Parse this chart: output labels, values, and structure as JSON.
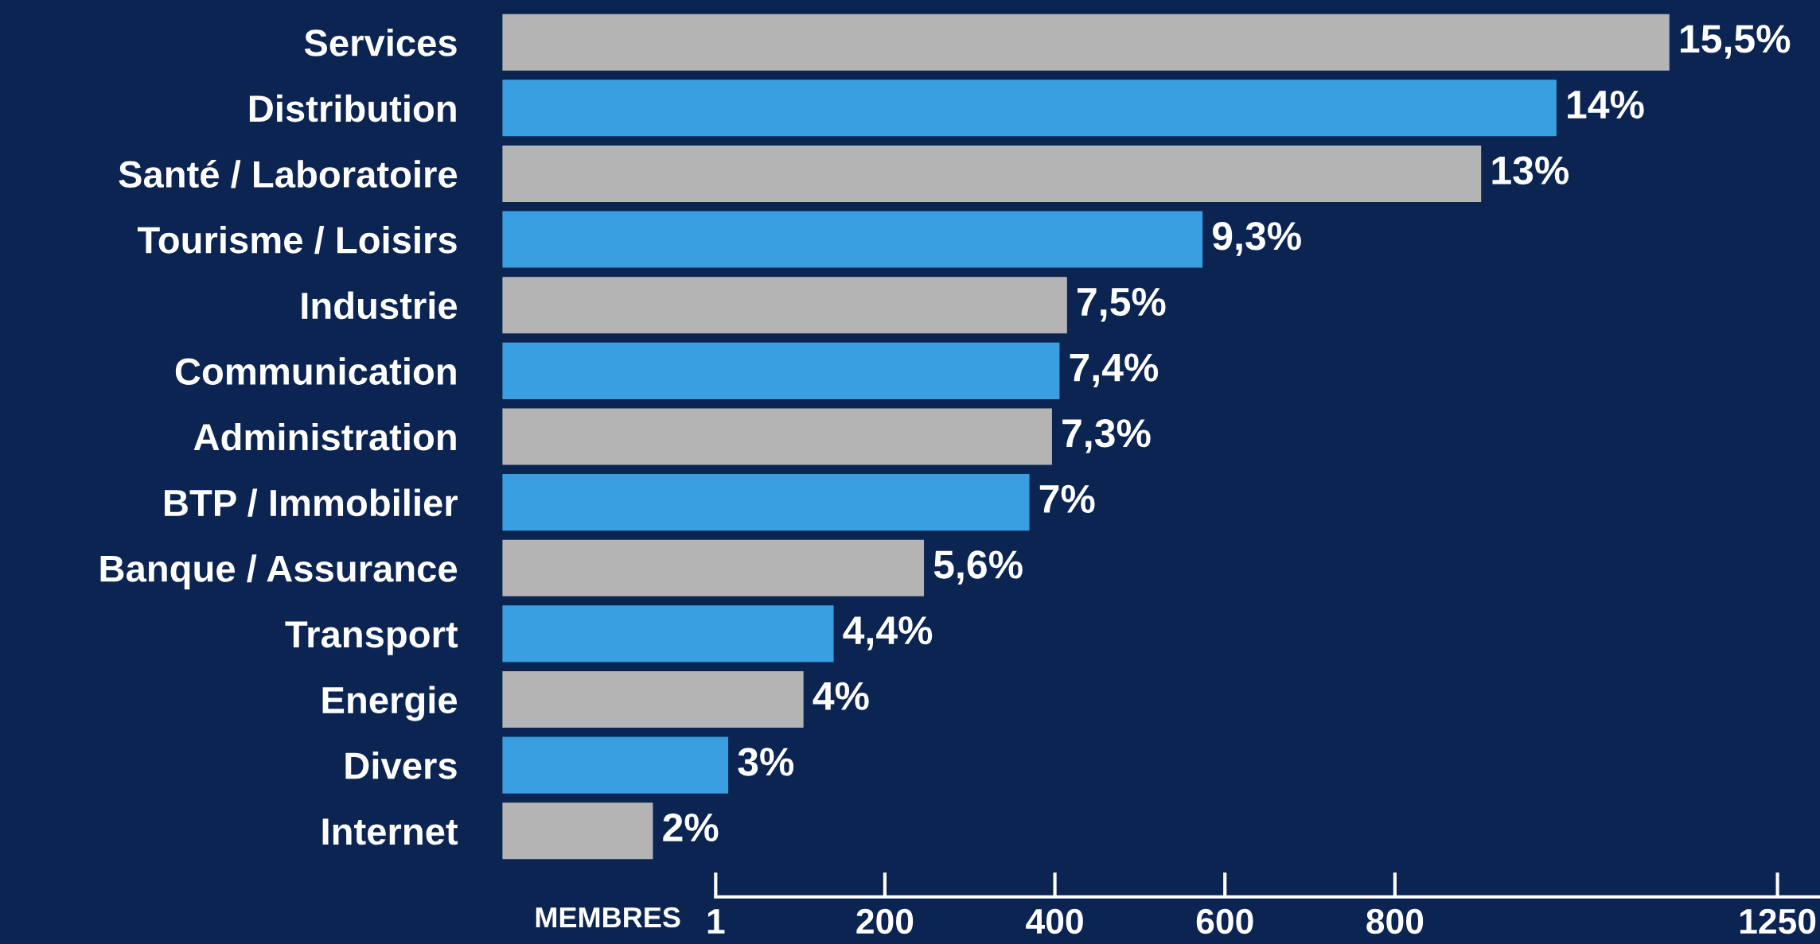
{
  "chart_data": {
    "type": "bar",
    "orientation": "horizontal",
    "categories": [
      "Services",
      "Distribution",
      "Santé / Laboratoire",
      "Tourisme / Loisirs",
      "Industrie",
      "Communication",
      "Administration",
      "BTP / Immobilier",
      "Banque / Assurance",
      "Transport",
      "Energie",
      "Divers",
      "Internet"
    ],
    "values": [
      15.5,
      14,
      13,
      9.3,
      7.5,
      7.4,
      7.3,
      7,
      5.6,
      4.4,
      4,
      3,
      2
    ],
    "value_labels": [
      "15,5%",
      "14%",
      "13%",
      "9,3%",
      "7,5%",
      "7,4%",
      "7,3%",
      "7%",
      "5,6%",
      "4,4%",
      "4%",
      "3%",
      "2%"
    ],
    "colors": [
      "#b4b4b4",
      "#3a9fe0",
      "#b4b4b4",
      "#3a9fe0",
      "#b4b4b4",
      "#3a9fe0",
      "#b4b4b4",
      "#3a9fe0",
      "#b4b4b4",
      "#3a9fe0",
      "#b4b4b4",
      "#3a9fe0",
      "#b4b4b4"
    ],
    "xlim": [
      0,
      17.5
    ],
    "x2label": "MEMBRES",
    "x2lim": [
      -250,
      1300
    ],
    "x2ticks": [
      1,
      200,
      400,
      600,
      800,
      1250
    ],
    "tick_labels": false,
    "grid": false,
    "legend": false
  }
}
